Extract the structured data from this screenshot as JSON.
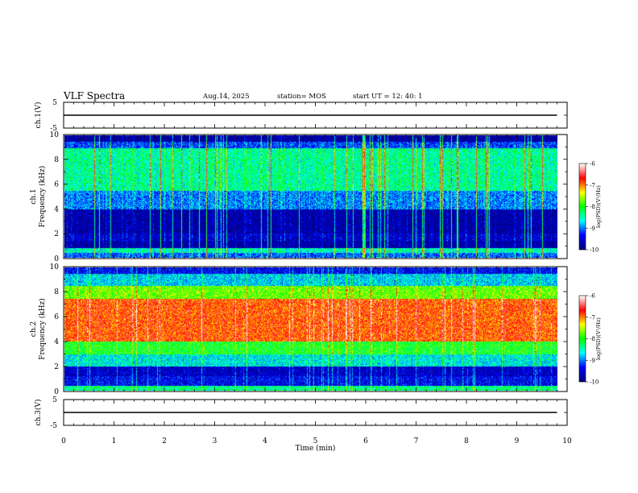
{
  "header": {
    "title": "VLF Spectra",
    "date": "Aug.14, 2025",
    "station": "station= MOS",
    "start": "start  UT =   12: 40: 1"
  },
  "chart_data": [
    {
      "type": "line",
      "name": "waveform-ch1",
      "ylabel": "ch.1(V)",
      "ylim": [
        -5,
        5
      ],
      "yticks": [
        "5",
        "-5"
      ],
      "xlim": [
        0,
        10
      ],
      "series": [
        {
          "x": [
            0,
            9.8
          ],
          "values": [
            0,
            0
          ]
        }
      ]
    },
    {
      "type": "heatmap",
      "name": "spectrogram-ch1",
      "ylabel": "ch.1\nFrequency (kHz)",
      "ylim": [
        0,
        10
      ],
      "yticks": [
        "0",
        "2",
        "4",
        "6",
        "8",
        "10"
      ],
      "xlim": [
        0,
        10
      ],
      "data_end_min": 9.8,
      "colorbar": {
        "label": "log(PSD)(V²/Hz)",
        "range": [
          -10,
          -6
        ],
        "ticks": [
          "-6",
          "-7",
          "-8",
          "-9",
          "-10"
        ]
      },
      "band_log_psd": [
        {
          "f": [
            0.0,
            0.4
          ],
          "v": -9.0
        },
        {
          "f": [
            0.4,
            0.8
          ],
          "v": -8.4
        },
        {
          "f": [
            0.8,
            1.4
          ],
          "v": -9.7
        },
        {
          "f": [
            1.4,
            2.0
          ],
          "v": -9.5
        },
        {
          "f": [
            2.0,
            4.0
          ],
          "v": -9.7
        },
        {
          "f": [
            4.0,
            5.5
          ],
          "v": -8.9
        },
        {
          "f": [
            5.5,
            9.0
          ],
          "v": -8.3
        },
        {
          "f": [
            9.0,
            9.5
          ],
          "v": -9.1
        },
        {
          "f": [
            9.5,
            10.0
          ],
          "v": -9.8
        }
      ]
    },
    {
      "type": "heatmap",
      "name": "spectrogram-ch2",
      "ylabel": "ch.2\nFrequency (kHz)",
      "ylim": [
        0,
        10
      ],
      "yticks": [
        "0",
        "2",
        "4",
        "6",
        "8",
        "10"
      ],
      "xlim": [
        0,
        10
      ],
      "data_end_min": 9.8,
      "colorbar": {
        "label": "log(PSD)(V²/Hz)",
        "range": [
          -10,
          -6
        ],
        "ticks": [
          "-6",
          "-7",
          "-8",
          "-9",
          "-10"
        ]
      },
      "band_log_psd": [
        {
          "f": [
            0.0,
            0.4
          ],
          "v": -8.3
        },
        {
          "f": [
            0.4,
            1.2
          ],
          "v": -9.4
        },
        {
          "f": [
            1.2,
            2.0
          ],
          "v": -9.6
        },
        {
          "f": [
            2.0,
            3.0
          ],
          "v": -8.6
        },
        {
          "f": [
            3.0,
            4.0
          ],
          "v": -8.0
        },
        {
          "f": [
            4.0,
            7.5
          ],
          "v": -6.8
        },
        {
          "f": [
            7.5,
            8.5
          ],
          "v": -7.7
        },
        {
          "f": [
            8.5,
            9.5
          ],
          "v": -8.7
        },
        {
          "f": [
            9.5,
            10.0
          ],
          "v": -9.4
        }
      ]
    },
    {
      "type": "line",
      "name": "waveform-ch3",
      "ylabel": "ch.3(V)",
      "ylim": [
        -5,
        5
      ],
      "yticks": [
        "5",
        "-5"
      ],
      "xlim": [
        0,
        10
      ],
      "series": [
        {
          "x": [
            0,
            9.8
          ],
          "values": [
            0,
            0
          ]
        }
      ]
    }
  ],
  "x_axis": {
    "label": "Time (min)",
    "ticks": [
      "0",
      "1",
      "2",
      "3",
      "4",
      "5",
      "6",
      "7",
      "8",
      "9",
      "10"
    ],
    "range": [
      0,
      10
    ]
  },
  "colors": {
    "scale": [
      "#000080",
      "#0000ff",
      "#00ffff",
      "#00ff00",
      "#ffff00",
      "#ff0000",
      "#ffffff"
    ]
  }
}
